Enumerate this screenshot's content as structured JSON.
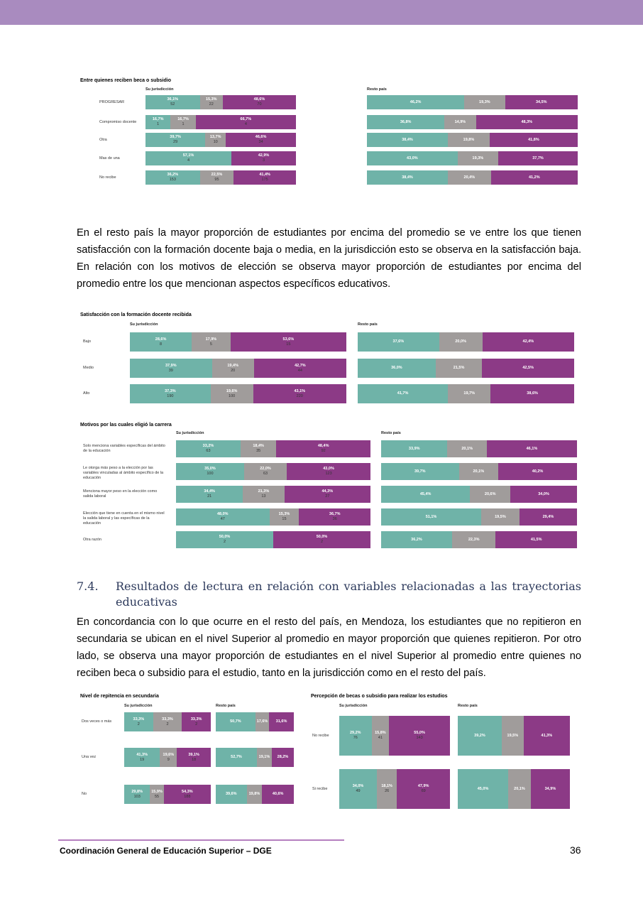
{
  "colors": {
    "teal": "#6fb3a8",
    "gray": "#a09c9b",
    "purple": "#8c3a86",
    "banner": "#a98bbf"
  },
  "text": {
    "para1": "En el resto país la mayor proporción de estudiantes por encima del promedio se ve entre los que tienen satisfacción con la formación docente baja o media, en la jurisdicción esto se observa en la satisfacción baja. En relación con los motivos de elección se observa mayor proporción de estudiantes por encima del promedio entre los que mencionan aspectos específicos educativos.",
    "section_number": "7.4.",
    "section_title": "Resultados de lectura en relación con variables relacionadas a las trayectorias educativas",
    "para2": "En concordancia con lo que ocurre en el resto del país, en Mendoza, los estudiantes que no repitieron en secundaria se ubican en el nivel Superior al promedio en mayor proporción que quienes repitieron. Por otro lado, se observa una mayor proporción de estudiantes en el nivel Superior al promedio entre quienes no reciben beca o subsidio para el estudio, tanto en la jurisdicción como en el resto del país."
  },
  "footer": {
    "text": "Coordinación General de Educación Superior – DGE",
    "page": "36"
  },
  "chart_data": [
    {
      "type": "bar",
      "stacked": true,
      "title": "Entre quienes reciben beca o subsidio",
      "rows": [
        "PROGRESAR",
        "Compromiso docente",
        "Otra",
        "Mas de una",
        "No recibe"
      ],
      "panels": [
        {
          "label": "Su jurisdicción",
          "values": [
            [
              [
                "36,1%",
                "52",
                "teal"
              ],
              [
                "15,3%",
                "22",
                "gray"
              ],
              [
                "48,6%",
                "70",
                "purple"
              ]
            ],
            [
              [
                "16,7%",
                "1",
                "teal"
              ],
              [
                "16,7%",
                "1",
                "gray"
              ],
              [
                "66,7%",
                "4",
                "purple"
              ]
            ],
            [
              [
                "39,7%",
                "29",
                "teal"
              ],
              [
                "13,7%",
                "10",
                "gray"
              ],
              [
                "46,6%",
                "34",
                "purple"
              ]
            ],
            [
              [
                "57,1%",
                "4",
                "teal"
              ],
              [
                "42,9%",
                "3",
                "purple"
              ]
            ],
            [
              [
                "36,2%",
                "153",
                "teal"
              ],
              [
                "22,5%",
                "95",
                "gray"
              ],
              [
                "41,4%",
                "175",
                "purple"
              ]
            ]
          ]
        },
        {
          "label": "Resto país",
          "values": [
            [
              [
                "46,2%",
                "",
                "teal"
              ],
              [
                "19,3%",
                "",
                "gray"
              ],
              [
                "34,5%",
                "",
                "purple"
              ]
            ],
            [
              [
                "36,8%",
                "",
                "teal"
              ],
              [
                "14,9%",
                "",
                "gray"
              ],
              [
                "48,3%",
                "",
                "purple"
              ]
            ],
            [
              [
                "38,4%",
                "",
                "teal"
              ],
              [
                "19,8%",
                "",
                "gray"
              ],
              [
                "41,8%",
                "",
                "purple"
              ]
            ],
            [
              [
                "43,0%",
                "",
                "teal"
              ],
              [
                "19,3%",
                "",
                "gray"
              ],
              [
                "37,7%",
                "",
                "purple"
              ]
            ],
            [
              [
                "38,4%",
                "",
                "teal"
              ],
              [
                "20,4%",
                "",
                "gray"
              ],
              [
                "41,2%",
                "",
                "purple"
              ]
            ]
          ]
        }
      ]
    },
    {
      "type": "bar",
      "stacked": true,
      "title": "Satisfacción con la formación docente recibida",
      "rows": [
        "Bajo",
        "Medio",
        "Alto"
      ],
      "panels": [
        {
          "label": "Su jurisdicción",
          "values": [
            [
              [
                "28,6%",
                "8",
                "teal"
              ],
              [
                "17,9%",
                "5",
                "gray"
              ],
              [
                "53,6%",
                "15",
                "purple"
              ]
            ],
            [
              [
                "37,9%",
                "39",
                "teal"
              ],
              [
                "19,4%",
                "20",
                "gray"
              ],
              [
                "42,7%",
                "44",
                "purple"
              ]
            ],
            [
              [
                "37,3%",
                "190",
                "teal"
              ],
              [
                "19,6%",
                "100",
                "gray"
              ],
              [
                "43,1%",
                "220",
                "purple"
              ]
            ]
          ]
        },
        {
          "label": "Resto país",
          "values": [
            [
              [
                "37,6%",
                "",
                "teal"
              ],
              [
                "20,0%",
                "",
                "gray"
              ],
              [
                "42,4%",
                "",
                "purple"
              ]
            ],
            [
              [
                "36,0%",
                "",
                "teal"
              ],
              [
                "21,5%",
                "",
                "gray"
              ],
              [
                "42,5%",
                "",
                "purple"
              ]
            ],
            [
              [
                "41,7%",
                "",
                "teal"
              ],
              [
                "19,7%",
                "",
                "gray"
              ],
              [
                "38,6%",
                "",
                "purple"
              ]
            ]
          ]
        }
      ]
    },
    {
      "type": "bar",
      "stacked": true,
      "title": "Motivos por las cuales eligió la carrera",
      "rows": [
        "Solo menciona variables específicas del ámbito de la educación",
        "Le otorga más peso a la elección por las variables vinculadas al ámbito específico de la educación",
        "Menciona mayor peso en la elección como salida laboral",
        "Elección que tiene en cuenta en el mismo nivel la salida laboral y las específicas de la educación",
        "Otra razón"
      ],
      "panels": [
        {
          "label": "Su jurisdicción",
          "values": [
            [
              [
                "33,2%",
                "63",
                "teal"
              ],
              [
                "18,4%",
                "35",
                "gray"
              ],
              [
                "48,4%",
                "92",
                "purple"
              ]
            ],
            [
              [
                "35,0%",
                "100",
                "teal"
              ],
              [
                "22,0%",
                "63",
                "gray"
              ],
              [
                "43,0%",
                "123",
                "purple"
              ]
            ],
            [
              [
                "34,4%",
                "21",
                "teal"
              ],
              [
                "21,3%",
                "13",
                "gray"
              ],
              [
                "44,3%",
                "27",
                "purple"
              ]
            ],
            [
              [
                "48,0%",
                "47",
                "teal"
              ],
              [
                "15,3%",
                "15",
                "gray"
              ],
              [
                "36,7%",
                "36",
                "purple"
              ]
            ],
            [
              [
                "50,0%",
                "2",
                "teal"
              ],
              [
                "50,0%",
                "2",
                "purple"
              ]
            ]
          ]
        },
        {
          "label": "Resto país",
          "values": [
            [
              [
                "33,9%",
                "",
                "teal"
              ],
              [
                "20,1%",
                "",
                "gray"
              ],
              [
                "46,1%",
                "",
                "purple"
              ]
            ],
            [
              [
                "39,7%",
                "",
                "teal"
              ],
              [
                "20,1%",
                "",
                "gray"
              ],
              [
                "40,2%",
                "",
                "purple"
              ]
            ],
            [
              [
                "45,4%",
                "",
                "teal"
              ],
              [
                "20,6%",
                "",
                "gray"
              ],
              [
                "34,0%",
                "",
                "purple"
              ]
            ],
            [
              [
                "51,1%",
                "",
                "teal"
              ],
              [
                "19,5%",
                "",
                "gray"
              ],
              [
                "29,4%",
                "",
                "purple"
              ]
            ],
            [
              [
                "36,2%",
                "",
                "teal"
              ],
              [
                "22,3%",
                "",
                "gray"
              ],
              [
                "41,5%",
                "",
                "purple"
              ]
            ]
          ]
        }
      ]
    },
    {
      "type": "bar",
      "stacked": true,
      "title": "Nivel de repitencia en secundaria",
      "rows": [
        "Dos veces o más",
        "Una vez",
        "No"
      ],
      "panels": [
        {
          "label": "Su jurisdicción",
          "values": [
            [
              [
                "33,3%",
                "2",
                "teal"
              ],
              [
                "33,3%",
                "2",
                "gray"
              ],
              [
                "33,3%",
                "2",
                "purple"
              ]
            ],
            [
              [
                "41,3%",
                "19",
                "teal"
              ],
              [
                "19,6%",
                "9",
                "gray"
              ],
              [
                "39,1%",
                "18",
                "purple"
              ]
            ],
            [
              [
                "29,8%",
                "103",
                "teal"
              ],
              [
                "15,9%",
                "55",
                "gray"
              ],
              [
                "54,3%",
                "188",
                "purple"
              ]
            ]
          ]
        },
        {
          "label": "Resto país",
          "values": [
            [
              [
                "50,7%",
                "",
                "teal"
              ],
              [
                "17,6%",
                "",
                "gray"
              ],
              [
                "31,6%",
                "",
                "purple"
              ]
            ],
            [
              [
                "52,7%",
                "",
                "teal"
              ],
              [
                "19,1%",
                "",
                "gray"
              ],
              [
                "28,2%",
                "",
                "purple"
              ]
            ],
            [
              [
                "39,6%",
                "",
                "teal"
              ],
              [
                "19,8%",
                "",
                "gray"
              ],
              [
                "40,6%",
                "",
                "purple"
              ]
            ]
          ]
        }
      ]
    },
    {
      "type": "bar",
      "stacked": true,
      "title": "Percepción de becas o subsidio para realizar los estudios",
      "rows": [
        "No recibe",
        "Si recibe"
      ],
      "panels": [
        {
          "label": "Su jurisdicción",
          "values": [
            [
              [
                "29,2%",
                "76",
                "teal"
              ],
              [
                "15,8%",
                "41",
                "gray"
              ],
              [
                "55,0%",
                "143",
                "purple"
              ]
            ],
            [
              [
                "34,0%",
                "49",
                "teal"
              ],
              [
                "18,1%",
                "26",
                "gray"
              ],
              [
                "47,9%",
                "69",
                "purple"
              ]
            ]
          ]
        },
        {
          "label": "Resto país",
          "values": [
            [
              [
                "39,2%",
                "",
                "teal"
              ],
              [
                "19,5%",
                "",
                "gray"
              ],
              [
                "41,3%",
                "",
                "purple"
              ]
            ],
            [
              [
                "45,0%",
                "",
                "teal"
              ],
              [
                "20,1%",
                "",
                "gray"
              ],
              [
                "34,9%",
                "",
                "purple"
              ]
            ]
          ]
        }
      ]
    }
  ]
}
